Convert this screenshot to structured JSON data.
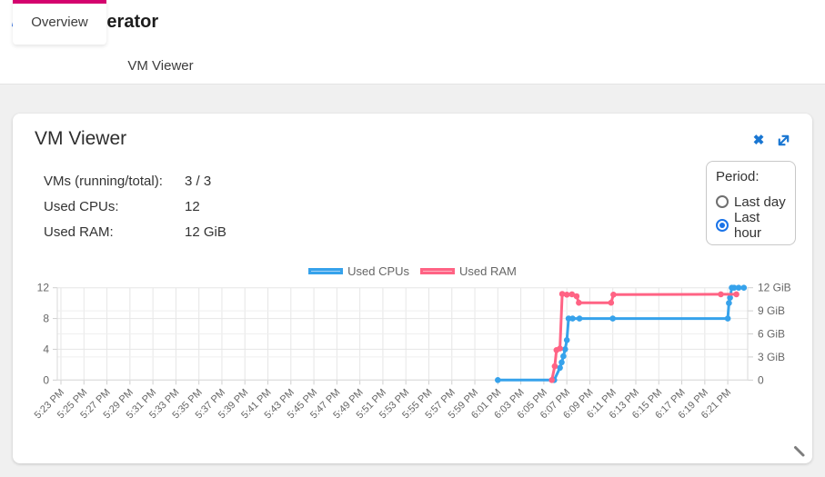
{
  "header": {
    "title": "VM-Operator",
    "logo": {
      "text": "VM",
      "caret": "⌄"
    }
  },
  "tabs": [
    {
      "label": "Overview",
      "active": true
    },
    {
      "label": "VM Viewer",
      "active": false
    }
  ],
  "panel": {
    "title": "VM Viewer",
    "stats": [
      {
        "label": "VMs (running/total):",
        "value": "3 / 3"
      },
      {
        "label": "Used CPUs:",
        "value": "12"
      },
      {
        "label": "Used RAM:",
        "value": "12 GiB"
      }
    ],
    "period": {
      "label": "Period:",
      "options": [
        {
          "label": "Last day",
          "selected": false
        },
        {
          "label": "Last hour",
          "selected": true
        }
      ]
    }
  },
  "colors": {
    "accent_magenta": "#d4026e",
    "icon_blue": "#1976d2",
    "radio_blue": "#1a73e8",
    "cpu_line": "#36a2eb",
    "ram_line": "#ff6384",
    "axis_text": "#666666",
    "grid_major": "#e6e6e6",
    "grid_minor": "#efefef",
    "axis_border": "#d9d9d9"
  },
  "chart_data": {
    "type": "line",
    "title": "",
    "xlabel": "",
    "ylabel_left": "",
    "ylabel_right": "",
    "x_tick_labels": [
      "5:23 PM",
      "5:25 PM",
      "5:27 PM",
      "5:29 PM",
      "5:31 PM",
      "5:33 PM",
      "5:35 PM",
      "5:37 PM",
      "5:39 PM",
      "5:41 PM",
      "5:43 PM",
      "5:45 PM",
      "5:47 PM",
      "5:49 PM",
      "5:51 PM",
      "5:53 PM",
      "5:55 PM",
      "5:57 PM",
      "5:59 PM",
      "6:01 PM",
      "6:03 PM",
      "6:05 PM",
      "6:07 PM",
      "6:09 PM",
      "6:11 PM",
      "6:13 PM",
      "6:15 PM",
      "6:17 PM",
      "6:19 PM",
      "6:21 PM"
    ],
    "x_tick_interval_minutes": 2,
    "y_left": {
      "ticks": [
        0,
        4,
        8,
        12
      ],
      "range": [
        0,
        12
      ]
    },
    "y_right": {
      "ticks": [
        0,
        3,
        6,
        9,
        12
      ],
      "tick_labels": [
        "0",
        "3 GiB",
        "6 GiB",
        "9 GiB",
        "12 GiB"
      ],
      "range": [
        0,
        12
      ]
    },
    "legend_position": "top",
    "grid": true,
    "series": [
      {
        "name": "Used CPUs",
        "axis": "left",
        "color": "#36a2eb",
        "legend_fill": "#a8d4f7",
        "points": [
          [
            38,
            0
          ],
          [
            42.9,
            0
          ],
          [
            43.4,
            1.6
          ],
          [
            43.55,
            2.3
          ],
          [
            43.7,
            3.1
          ],
          [
            43.85,
            4.0
          ],
          [
            44.0,
            5.2
          ],
          [
            44.15,
            8
          ],
          [
            44.5,
            8
          ],
          [
            45.1,
            8
          ],
          [
            48,
            8
          ],
          [
            58.0,
            8
          ],
          [
            58.1,
            10
          ],
          [
            58.2,
            10.7
          ],
          [
            58.35,
            12
          ],
          [
            58.55,
            12
          ],
          [
            58.95,
            12
          ],
          [
            59.4,
            12
          ]
        ]
      },
      {
        "name": "Used RAM",
        "axis": "right",
        "color": "#ff6384",
        "legend_fill": "#ffb3c3",
        "points": [
          [
            42.7,
            0
          ],
          [
            42.95,
            1.8
          ],
          [
            43.1,
            3.9
          ],
          [
            43.4,
            4.1
          ],
          [
            43.6,
            11.2
          ],
          [
            44.0,
            11.1
          ],
          [
            44.45,
            11.15
          ],
          [
            44.85,
            10.9
          ],
          [
            45.05,
            10.05
          ],
          [
            47.85,
            10.05
          ],
          [
            48.05,
            11.1
          ],
          [
            57.4,
            11.15
          ],
          [
            58.75,
            11.15
          ]
        ]
      }
    ],
    "points_x_unit": "minutes after 5:23 PM"
  }
}
